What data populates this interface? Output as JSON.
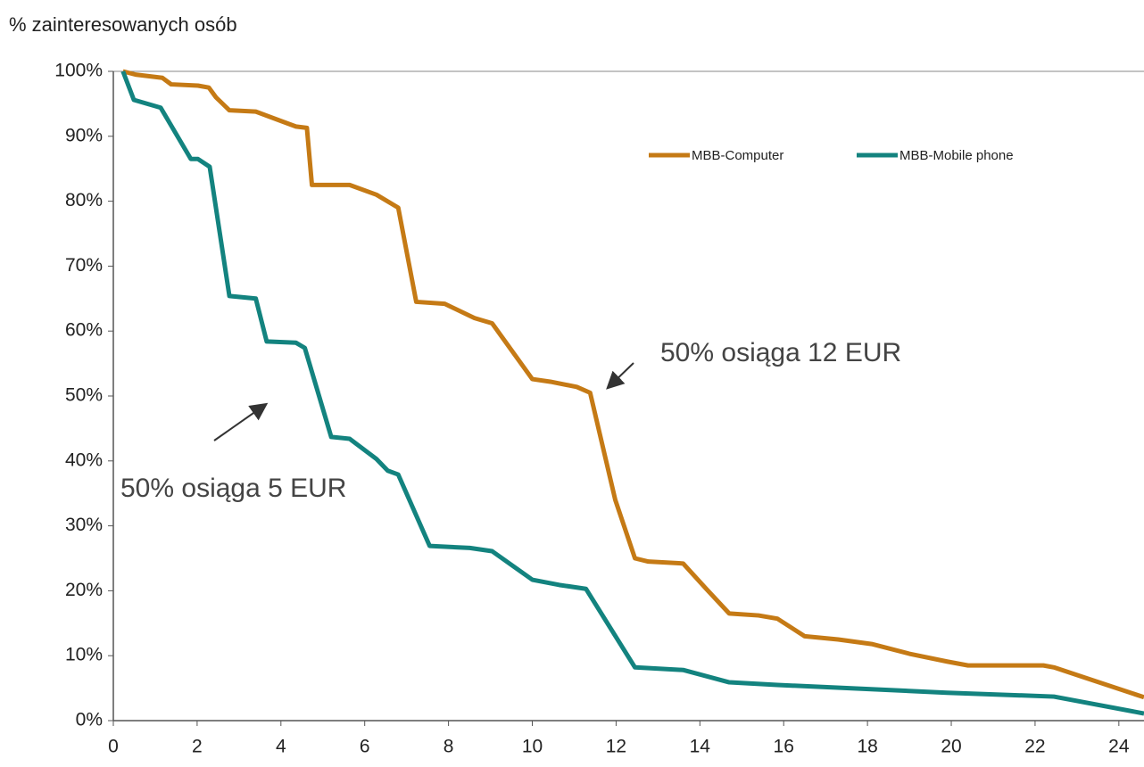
{
  "chart_data": {
    "type": "line",
    "y_axis_label": "% zainteresowanych osób",
    "xlim": [
      0,
      24.6
    ],
    "xticks": [
      0,
      2,
      4,
      6,
      8,
      10,
      12,
      14,
      16,
      18,
      20,
      22,
      24
    ],
    "ylim": [
      0,
      100
    ],
    "yticks": [
      {
        "value": 0,
        "label": "0%"
      },
      {
        "value": 10,
        "label": "10%"
      },
      {
        "value": 20,
        "label": "20%"
      },
      {
        "value": 30,
        "label": "30%"
      },
      {
        "value": 40,
        "label": "40%"
      },
      {
        "value": 50,
        "label": "50%"
      },
      {
        "value": 60,
        "label": "60%"
      },
      {
        "value": 70,
        "label": "70%"
      },
      {
        "value": 80,
        "label": "80%"
      },
      {
        "value": 90,
        "label": "90%"
      },
      {
        "value": 100,
        "label": "100%"
      }
    ],
    "grid": false,
    "annotations": [
      "50% osiąga 12 EUR",
      "50% osiąga 5 EUR"
    ],
    "series": [
      {
        "name": "MBB-Computer",
        "color": "#c57a15",
        "x": [
          0.23,
          0.53,
          1.17,
          1.38,
          2.02,
          2.28,
          2.45,
          2.77,
          3.4,
          4.15,
          4.36,
          4.62,
          4.74,
          5.64,
          6.28,
          6.8,
          7.23,
          7.91,
          8.62,
          9.04,
          10.0,
          10.43,
          11.06,
          11.38,
          11.98,
          12.45,
          12.77,
          13.6,
          14.15,
          14.7,
          15.4,
          15.85,
          16.5,
          17.3,
          18.1,
          19.0,
          19.9,
          20.4,
          22.2,
          22.45,
          24.6
        ],
        "values": [
          100,
          99.5,
          99,
          98,
          97.8,
          97.5,
          96,
          94,
          93.8,
          92,
          91.5,
          91.3,
          82.5,
          82.5,
          81,
          79,
          64.5,
          64.2,
          62,
          61.2,
          52.6,
          52.2,
          51.4,
          50.5,
          34,
          25,
          24.5,
          24.2,
          20.3,
          16.5,
          16.2,
          15.7,
          13,
          12.5,
          11.8,
          10.3,
          9.1,
          8.5,
          8.5,
          8.2,
          3.6
        ]
      },
      {
        "name": "MBB-Mobile phone",
        "color": "#13837f",
        "x": [
          0.23,
          0.49,
          1.13,
          1.85,
          2.02,
          2.3,
          2.77,
          3.4,
          3.66,
          4.36,
          4.57,
          5.2,
          5.64,
          6.28,
          6.55,
          6.8,
          7.55,
          8.51,
          9.04,
          10.0,
          10.64,
          11.28,
          12.45,
          13.6,
          14.7,
          15.85,
          19.9,
          22.45,
          24.6
        ],
        "values": [
          100,
          95.6,
          94.4,
          86.5,
          86.5,
          85.3,
          65.4,
          65,
          58.4,
          58.2,
          57.4,
          43.7,
          43.4,
          40.3,
          38.5,
          37.9,
          26.9,
          26.6,
          26.1,
          21.7,
          20.9,
          20.3,
          8.2,
          7.8,
          5.9,
          5.5,
          4.3,
          3.7,
          1.1
        ]
      }
    ]
  }
}
